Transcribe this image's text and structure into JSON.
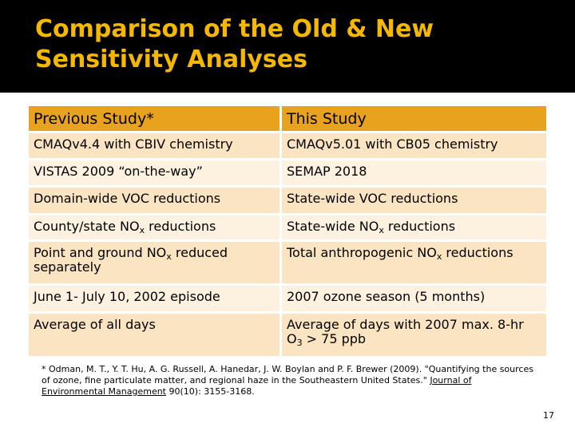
{
  "title": {
    "line1": "Comparison of the Old & New",
    "line2": "Sensitivity Analyses"
  },
  "table": {
    "headers": [
      "Previous Study*",
      "This Study"
    ],
    "rows": [
      {
        "left": "CMAQv4.4 with CBIV chemistry",
        "right": "CMAQv5.01 with CB05 chemistry"
      },
      {
        "left": "VISTAS 2009 “on-the-way”",
        "right": "SEMAP 2018"
      },
      {
        "left": "Domain-wide VOC reductions",
        "right": "State-wide VOC reductions"
      },
      {
        "left_pre": "County/state NO",
        "left_sub": "x",
        "left_post": " reductions",
        "right_pre": "State-wide NO",
        "right_sub": "x",
        "right_post": " reductions"
      },
      {
        "left_pre": "Point and ground NO",
        "left_sub": "x",
        "left_post": " reduced separately",
        "right_pre": "Total anthropogenic NO",
        "right_sub": "x",
        "right_post": " reductions"
      },
      {
        "left": "June 1- July 10, 2002 episode",
        "right": "2007 ozone season (5 months)"
      },
      {
        "left": "Average of all days",
        "right_pre": "Average of days with 2007 max. 8-hr O",
        "right_sub": "3",
        "right_post": " > 75 ppb"
      }
    ]
  },
  "reference": {
    "text_pre": "* Odman, M. T., Y. T. Hu, A. G. Russell, A. Hanedar, J. W. Boylan and P. F. Brewer (2009). \"Quantifying the sources of ozone, fine particulate matter, and regional haze in the Southeastern United States.\" ",
    "journal": "Journal of Environmental Management",
    "text_post": " 90(10): 3155-3168."
  },
  "page_number": "17"
}
